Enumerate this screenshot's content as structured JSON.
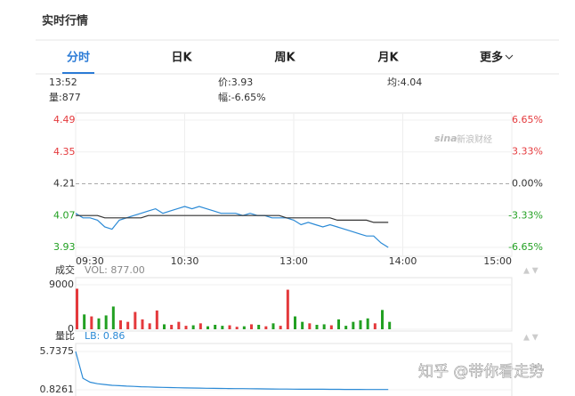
{
  "header": {
    "title": "实时行情"
  },
  "tabs": [
    "分时",
    "日K",
    "周K",
    "月K",
    "更多"
  ],
  "active_tab": 0,
  "quote": {
    "time": "13:52",
    "price": "价:3.93",
    "average": "均:4.04",
    "volume": "量:877",
    "amplitude": "幅:-6.65%"
  },
  "watermark": {
    "brand": "sina",
    "source": "新浪财经",
    "credit": "知乎 @带你看走势"
  },
  "chart_data": [
    {
      "type": "line",
      "x": [
        0,
        4,
        8,
        12,
        16,
        20,
        24,
        28,
        32,
        36,
        40,
        44,
        48,
        52,
        56,
        60,
        64,
        68,
        72,
        76,
        80,
        84,
        88,
        92,
        96,
        100,
        104,
        108,
        112,
        116,
        120,
        124,
        128,
        132,
        136,
        140,
        144,
        148,
        152,
        156,
        160,
        164,
        168,
        172
      ],
      "xlim": [
        0,
        240
      ],
      "xticks": [
        {
          "value": 0,
          "label": "09:30"
        },
        {
          "value": 60,
          "label": "10:30"
        },
        {
          "value": 120,
          "label": "13:00"
        },
        {
          "value": 180,
          "label": "14:00"
        },
        {
          "value": 240,
          "label": "15:00"
        }
      ],
      "ylim": [
        3.93,
        4.49
      ],
      "yticks": [
        3.93,
        4.07,
        4.21,
        4.35,
        4.49
      ],
      "y2lim": [
        -6.65,
        6.65
      ],
      "y2ticks": [
        {
          "value": -6.65,
          "label": "-6.65%"
        },
        {
          "value": -3.33,
          "label": "-3.33%"
        },
        {
          "value": 0,
          "label": "0.00%"
        },
        {
          "value": 3.33,
          "label": "3.33%"
        },
        {
          "value": 6.65,
          "label": "6.65%"
        }
      ],
      "reference": 4.21,
      "up_color": "#e4393c",
      "down_color": "#22a022",
      "series": [
        {
          "color": "#2b8ad6",
          "values": [
            4.08,
            4.06,
            4.06,
            4.05,
            4.02,
            4.01,
            4.05,
            4.06,
            4.07,
            4.08,
            4.09,
            4.1,
            4.08,
            4.09,
            4.1,
            4.11,
            4.1,
            4.11,
            4.1,
            4.09,
            4.08,
            4.08,
            4.08,
            4.07,
            4.08,
            4.07,
            4.07,
            4.06,
            4.06,
            4.06,
            4.05,
            4.03,
            4.04,
            4.03,
            4.02,
            4.03,
            4.02,
            4.01,
            4.0,
            3.99,
            3.98,
            3.98,
            3.95,
            3.93
          ]
        },
        {
          "color": "#333333",
          "values": [
            4.07,
            4.07,
            4.07,
            4.07,
            4.06,
            4.06,
            4.06,
            4.06,
            4.06,
            4.06,
            4.07,
            4.07,
            4.07,
            4.07,
            4.07,
            4.07,
            4.07,
            4.07,
            4.07,
            4.07,
            4.07,
            4.07,
            4.07,
            4.07,
            4.07,
            4.07,
            4.07,
            4.07,
            4.07,
            4.06,
            4.06,
            4.06,
            4.06,
            4.06,
            4.06,
            4.06,
            4.05,
            4.05,
            4.05,
            4.05,
            4.05,
            4.04,
            4.04,
            4.04
          ]
        }
      ]
    },
    {
      "type": "bar",
      "title": "成交",
      "subtitle": "VOL: 877.00",
      "x": [
        0,
        4,
        8,
        12,
        16,
        20,
        24,
        28,
        32,
        36,
        40,
        44,
        48,
        52,
        56,
        60,
        64,
        68,
        72,
        76,
        80,
        84,
        88,
        92,
        96,
        100,
        104,
        108,
        112,
        116,
        120,
        124,
        128,
        132,
        136,
        140,
        144,
        148,
        152,
        156,
        160,
        164,
        168,
        172
      ],
      "xlim": [
        0,
        240
      ],
      "ylim": [
        0,
        9000
      ],
      "yticks": [
        0,
        9000
      ],
      "values": [
        8200,
        3000,
        2600,
        2200,
        2800,
        4600,
        1800,
        1500,
        3500,
        2000,
        1200,
        3800,
        1000,
        900,
        1500,
        700,
        800,
        1200,
        600,
        900,
        700,
        800,
        500,
        600,
        1000,
        900,
        600,
        1200,
        700,
        8000,
        2600,
        1500,
        1200,
        900,
        1000,
        800,
        2000,
        700,
        1500,
        1800,
        2200,
        1200,
        3900,
        1500
      ]
    },
    {
      "type": "line",
      "title": "量比",
      "subtitle": "LB: 0.86",
      "x": [
        0,
        4,
        8,
        12,
        16,
        20,
        24,
        28,
        32,
        36,
        40,
        44,
        48,
        52,
        56,
        60,
        64,
        68,
        72,
        76,
        80,
        84,
        88,
        92,
        96,
        100,
        104,
        108,
        112,
        116,
        120,
        124,
        128,
        132,
        136,
        140,
        144,
        148,
        152,
        156,
        160,
        164,
        168,
        172
      ],
      "xlim": [
        0,
        240
      ],
      "ylim": [
        0.8261,
        5.7375
      ],
      "yticks": [
        0.8261,
        5.7375
      ],
      "series": [
        {
          "color": "#2b8ad6",
          "values": [
            5.7375,
            2.3,
            1.8,
            1.6,
            1.5,
            1.4,
            1.35,
            1.3,
            1.26,
            1.22,
            1.19,
            1.16,
            1.13,
            1.11,
            1.09,
            1.07,
            1.05,
            1.04,
            1.02,
            1.01,
            1.0,
            0.99,
            0.98,
            0.97,
            0.96,
            0.95,
            0.94,
            0.93,
            0.92,
            0.92,
            0.91,
            0.9,
            0.9,
            0.89,
            0.89,
            0.88,
            0.88,
            0.87,
            0.87,
            0.87,
            0.86,
            0.86,
            0.86,
            0.86
          ]
        }
      ]
    }
  ]
}
